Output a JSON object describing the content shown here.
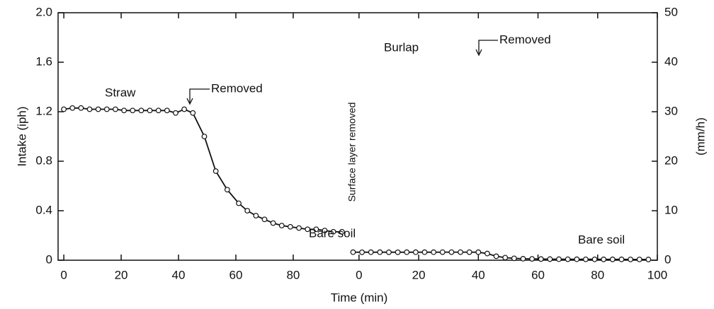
{
  "chart_data": [
    {
      "type": "line",
      "xlabel": "Time (min)",
      "ylabel": "Intake (iph)",
      "xlim": [
        -2,
        102
      ],
      "xticks": [
        0,
        20,
        40,
        60,
        80
      ],
      "ylim": [
        0,
        2
      ],
      "yticks": [
        0,
        0.4,
        0.8,
        1.2,
        1.6,
        {
          "value": 2,
          "label": "2.0"
        }
      ],
      "annotations": [
        "Straw",
        "Removed",
        "Bare soil",
        "Surface layer removed"
      ],
      "series": [
        {
          "color": "#111111",
          "x": [
            0,
            3,
            6,
            9,
            12,
            15,
            18,
            21,
            24,
            27,
            30,
            33,
            36,
            39,
            42,
            45,
            49,
            53,
            57,
            61,
            64,
            67,
            70,
            73,
            76,
            79,
            82,
            85,
            88,
            91,
            94,
            97
          ],
          "values": [
            1.22,
            1.23,
            1.23,
            1.22,
            1.22,
            1.22,
            1.22,
            1.21,
            1.21,
            1.21,
            1.21,
            1.21,
            1.21,
            1.19,
            1.22,
            1.19,
            1.0,
            0.72,
            0.57,
            0.46,
            0.4,
            0.36,
            0.33,
            0.3,
            0.28,
            0.27,
            0.26,
            0.25,
            0.25,
            0.24,
            0.23,
            0.23
          ]
        }
      ]
    },
    {
      "type": "line",
      "xlim": [
        -4,
        100
      ],
      "xticks": [
        0,
        20,
        40,
        60,
        80,
        100
      ],
      "y2label": "(mm/h)",
      "y2lim": [
        0,
        50
      ],
      "y2ticks": [
        0,
        10,
        20,
        30,
        40,
        50
      ],
      "annotations": [
        "Burlap",
        "Removed",
        "Bare soil"
      ],
      "series": [
        {
          "color": "#111111",
          "x": [
            -2,
            1,
            4,
            7,
            10,
            13,
            16,
            19,
            22,
            25,
            28,
            31,
            34,
            37,
            40,
            43,
            46,
            49,
            52,
            55,
            58,
            61,
            64,
            67,
            70,
            73,
            76,
            79,
            82,
            85,
            88,
            91,
            94,
            97
          ],
          "values": [
            1.62,
            1.61,
            1.62,
            1.62,
            1.61,
            1.61,
            1.62,
            1.62,
            1.62,
            1.62,
            1.63,
            1.63,
            1.63,
            1.63,
            1.62,
            1.35,
            0.8,
            0.52,
            0.38,
            0.3,
            0.27,
            0.24,
            0.22,
            0.21,
            0.2,
            0.19,
            0.18,
            0.18,
            0.17,
            0.17,
            0.17,
            0.16,
            0.16,
            0.15
          ]
        }
      ]
    }
  ]
}
